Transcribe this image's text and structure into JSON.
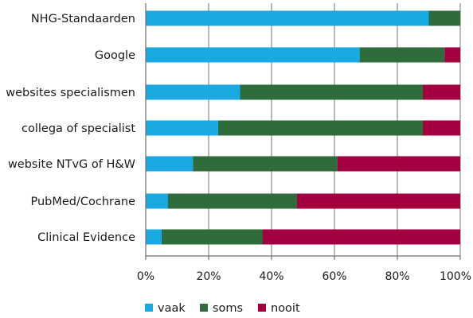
{
  "chart_data": {
    "type": "bar",
    "orientation": "horizontal",
    "stacked": true,
    "percent": true,
    "categories": [
      "NHG-Standaarden",
      "Google",
      "websites specialismen",
      "collega of specialist",
      "website NTvG of H&W",
      "PubMed/Cochrane",
      "Clinical Evidence"
    ],
    "series": [
      {
        "name": "vaak",
        "color": "#1aaae2",
        "values": [
          90,
          68,
          30,
          23,
          15,
          7,
          5
        ]
      },
      {
        "name": "soms",
        "color": "#2f6b3b",
        "values": [
          10,
          27,
          58,
          65,
          46,
          41,
          32
        ]
      },
      {
        "name": "nooit",
        "color": "#a3003f",
        "values": [
          0,
          5,
          12,
          12,
          39,
          52,
          63
        ]
      }
    ],
    "xlim": [
      0,
      100
    ],
    "xticks": [
      "0%",
      "20%",
      "40%",
      "60%",
      "80%",
      "100%"
    ],
    "xlabel": "",
    "ylabel": "",
    "title": "",
    "grid": "vertical",
    "legend_position": "bottom"
  }
}
